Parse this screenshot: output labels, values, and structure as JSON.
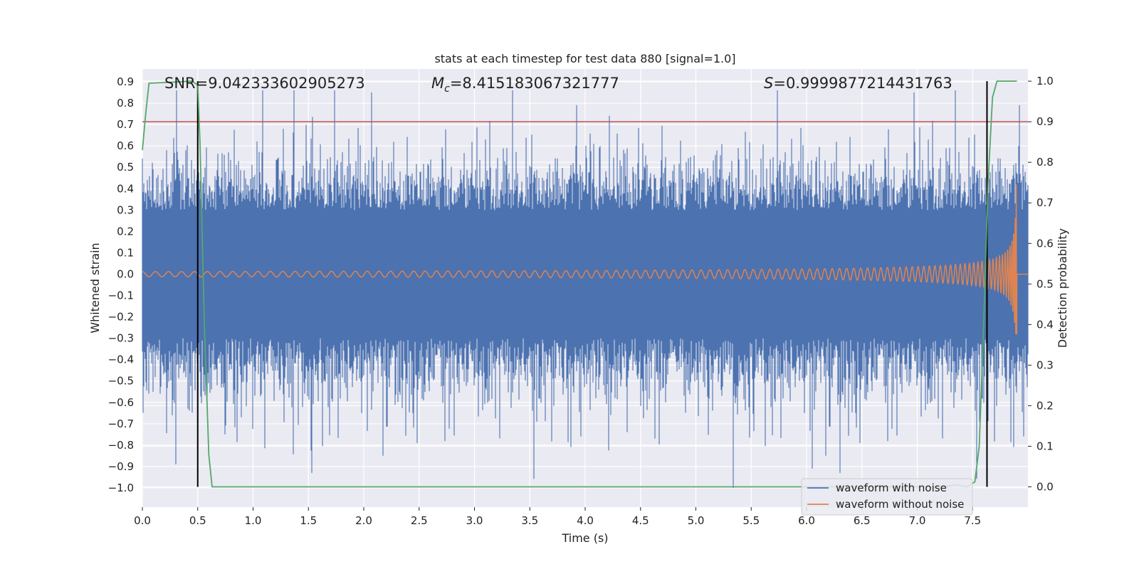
{
  "chart_data": {
    "type": "line",
    "title": "stats at each timestep for test data 880 [signal=1.0]",
    "xlabel": "Time (s)",
    "ylabel": "Whitened strain",
    "ylabel_right": "Detection probability",
    "xlim": [
      0.0,
      8.0
    ],
    "ylim": [
      -1.09,
      0.96
    ],
    "ylim_right": [
      -0.05,
      1.03
    ],
    "x_ticks": [
      "0.0",
      "0.5",
      "1.0",
      "1.5",
      "2.0",
      "2.5",
      "3.0",
      "3.5",
      "4.0",
      "4.5",
      "5.0",
      "5.5",
      "6.0",
      "6.5",
      "7.0",
      "7.5"
    ],
    "y_ticks": [
      "−1.0",
      "−0.9",
      "−0.8",
      "−0.7",
      "−0.6",
      "−0.5",
      "−0.4",
      "−0.3",
      "−0.2",
      "−0.1",
      "0.0",
      "0.1",
      "0.2",
      "0.3",
      "0.4",
      "0.5",
      "0.6",
      "0.7",
      "0.8",
      "0.9"
    ],
    "y_ticks_right": [
      "0.0",
      "0.1",
      "0.2",
      "0.3",
      "0.4",
      "0.5",
      "0.6",
      "0.7",
      "0.8",
      "0.9",
      "1.0"
    ],
    "annotations": {
      "snr_label": "SNR=9.042333602905273",
      "mc_label": "=8.415183067321777",
      "mc_symbol": "M",
      "mc_subscript": "c",
      "s_symbol": "S",
      "s_label": "=0.9999877214431763"
    },
    "legend": {
      "placement": "lower-right",
      "entries": [
        "waveform with noise",
        "waveform without noise"
      ]
    },
    "series": [
      {
        "name": "waveform with noise",
        "axis": "left",
        "color": "#4c72b0",
        "description_stats": {
          "core_amplitude": 0.3,
          "max_peak": 0.86,
          "min_peak": -1.0
        },
        "x_range": [
          0.0,
          8.0
        ]
      },
      {
        "name": "waveform without noise",
        "axis": "left",
        "color": "#dd8452",
        "chirp": {
          "t_start": 0.0,
          "t_merger": 7.9,
          "f_start": 6.0,
          "amp_start": 0.012,
          "amp_peak": 0.43,
          "amp_min": -0.28
        }
      },
      {
        "name": "detection probability",
        "axis": "right",
        "color": "#55a868",
        "x": [
          0.0,
          0.03,
          0.06,
          0.45,
          0.5,
          0.52,
          0.56,
          0.6,
          0.63,
          7.25,
          7.35,
          7.45,
          7.52,
          7.56,
          7.6,
          7.64,
          7.68,
          7.72,
          7.9
        ],
        "y": [
          0.83,
          0.92,
          0.995,
          1.0,
          0.99,
          0.85,
          0.4,
          0.08,
          0.0,
          0.0,
          0.005,
          0.0,
          0.012,
          0.1,
          0.4,
          0.75,
          0.96,
          1.0,
          1.0
        ]
      }
    ],
    "threshold": {
      "axis": "right",
      "value": 0.9,
      "color": "#c44e52"
    },
    "vertical_lines": [
      0.5,
      7.63
    ]
  }
}
